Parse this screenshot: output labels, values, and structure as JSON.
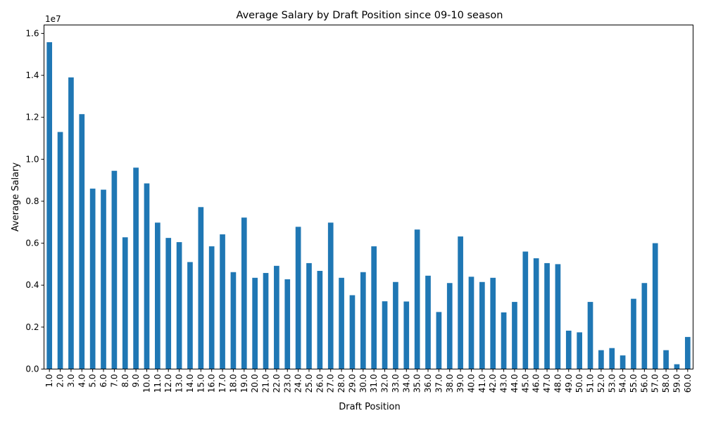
{
  "chart_data": {
    "type": "bar",
    "title": "Average Salary by Draft Position since 09-10 season",
    "xlabel": "Draft Position",
    "ylabel": "Average Salary",
    "y_scale_label": "1e7",
    "y_scale": 10000000,
    "ylim": [
      0,
      16400000
    ],
    "yticks": [
      0,
      2000000,
      4000000,
      6000000,
      8000000,
      10000000,
      12000000,
      14000000,
      16000000
    ],
    "ytick_labels": [
      "0.0",
      "0.2",
      "0.4",
      "0.6",
      "0.8",
      "1.0",
      "1.2",
      "1.4",
      "1.6"
    ],
    "bar_color": "#1f77b4",
    "grid": false,
    "legend": "none",
    "categories": [
      "1.0",
      "2.0",
      "3.0",
      "4.0",
      "5.0",
      "6.0",
      "7.0",
      "8.0",
      "9.0",
      "10.0",
      "11.0",
      "12.0",
      "13.0",
      "14.0",
      "15.0",
      "16.0",
      "17.0",
      "18.0",
      "19.0",
      "20.0",
      "21.0",
      "22.0",
      "23.0",
      "24.0",
      "25.0",
      "26.0",
      "27.0",
      "28.0",
      "29.0",
      "30.0",
      "31.0",
      "32.0",
      "33.0",
      "34.0",
      "35.0",
      "36.0",
      "37.0",
      "38.0",
      "39.0",
      "40.0",
      "41.0",
      "42.0",
      "43.0",
      "44.0",
      "45.0",
      "46.0",
      "47.0",
      "48.0",
      "49.0",
      "50.0",
      "51.0",
      "52.0",
      "53.0",
      "54.0",
      "55.0",
      "56.0",
      "57.0",
      "58.0",
      "59.0",
      "60.0"
    ],
    "values": [
      15580000,
      11300000,
      13900000,
      12150000,
      8600000,
      8550000,
      9450000,
      6280000,
      9600000,
      8850000,
      6980000,
      6250000,
      6050000,
      5100000,
      7720000,
      5850000,
      6420000,
      4620000,
      7220000,
      4350000,
      4580000,
      4920000,
      4280000,
      6780000,
      5050000,
      4680000,
      6980000,
      4350000,
      3520000,
      4620000,
      5850000,
      3230000,
      4150000,
      3220000,
      6650000,
      4450000,
      2720000,
      4100000,
      6320000,
      4400000,
      4150000,
      4350000,
      2700000,
      3200000,
      5600000,
      5280000,
      5050000,
      5000000,
      1830000,
      1750000,
      3200000,
      900000,
      1000000,
      650000,
      3350000,
      4100000,
      6000000,
      900000,
      230000,
      1530000
    ]
  }
}
